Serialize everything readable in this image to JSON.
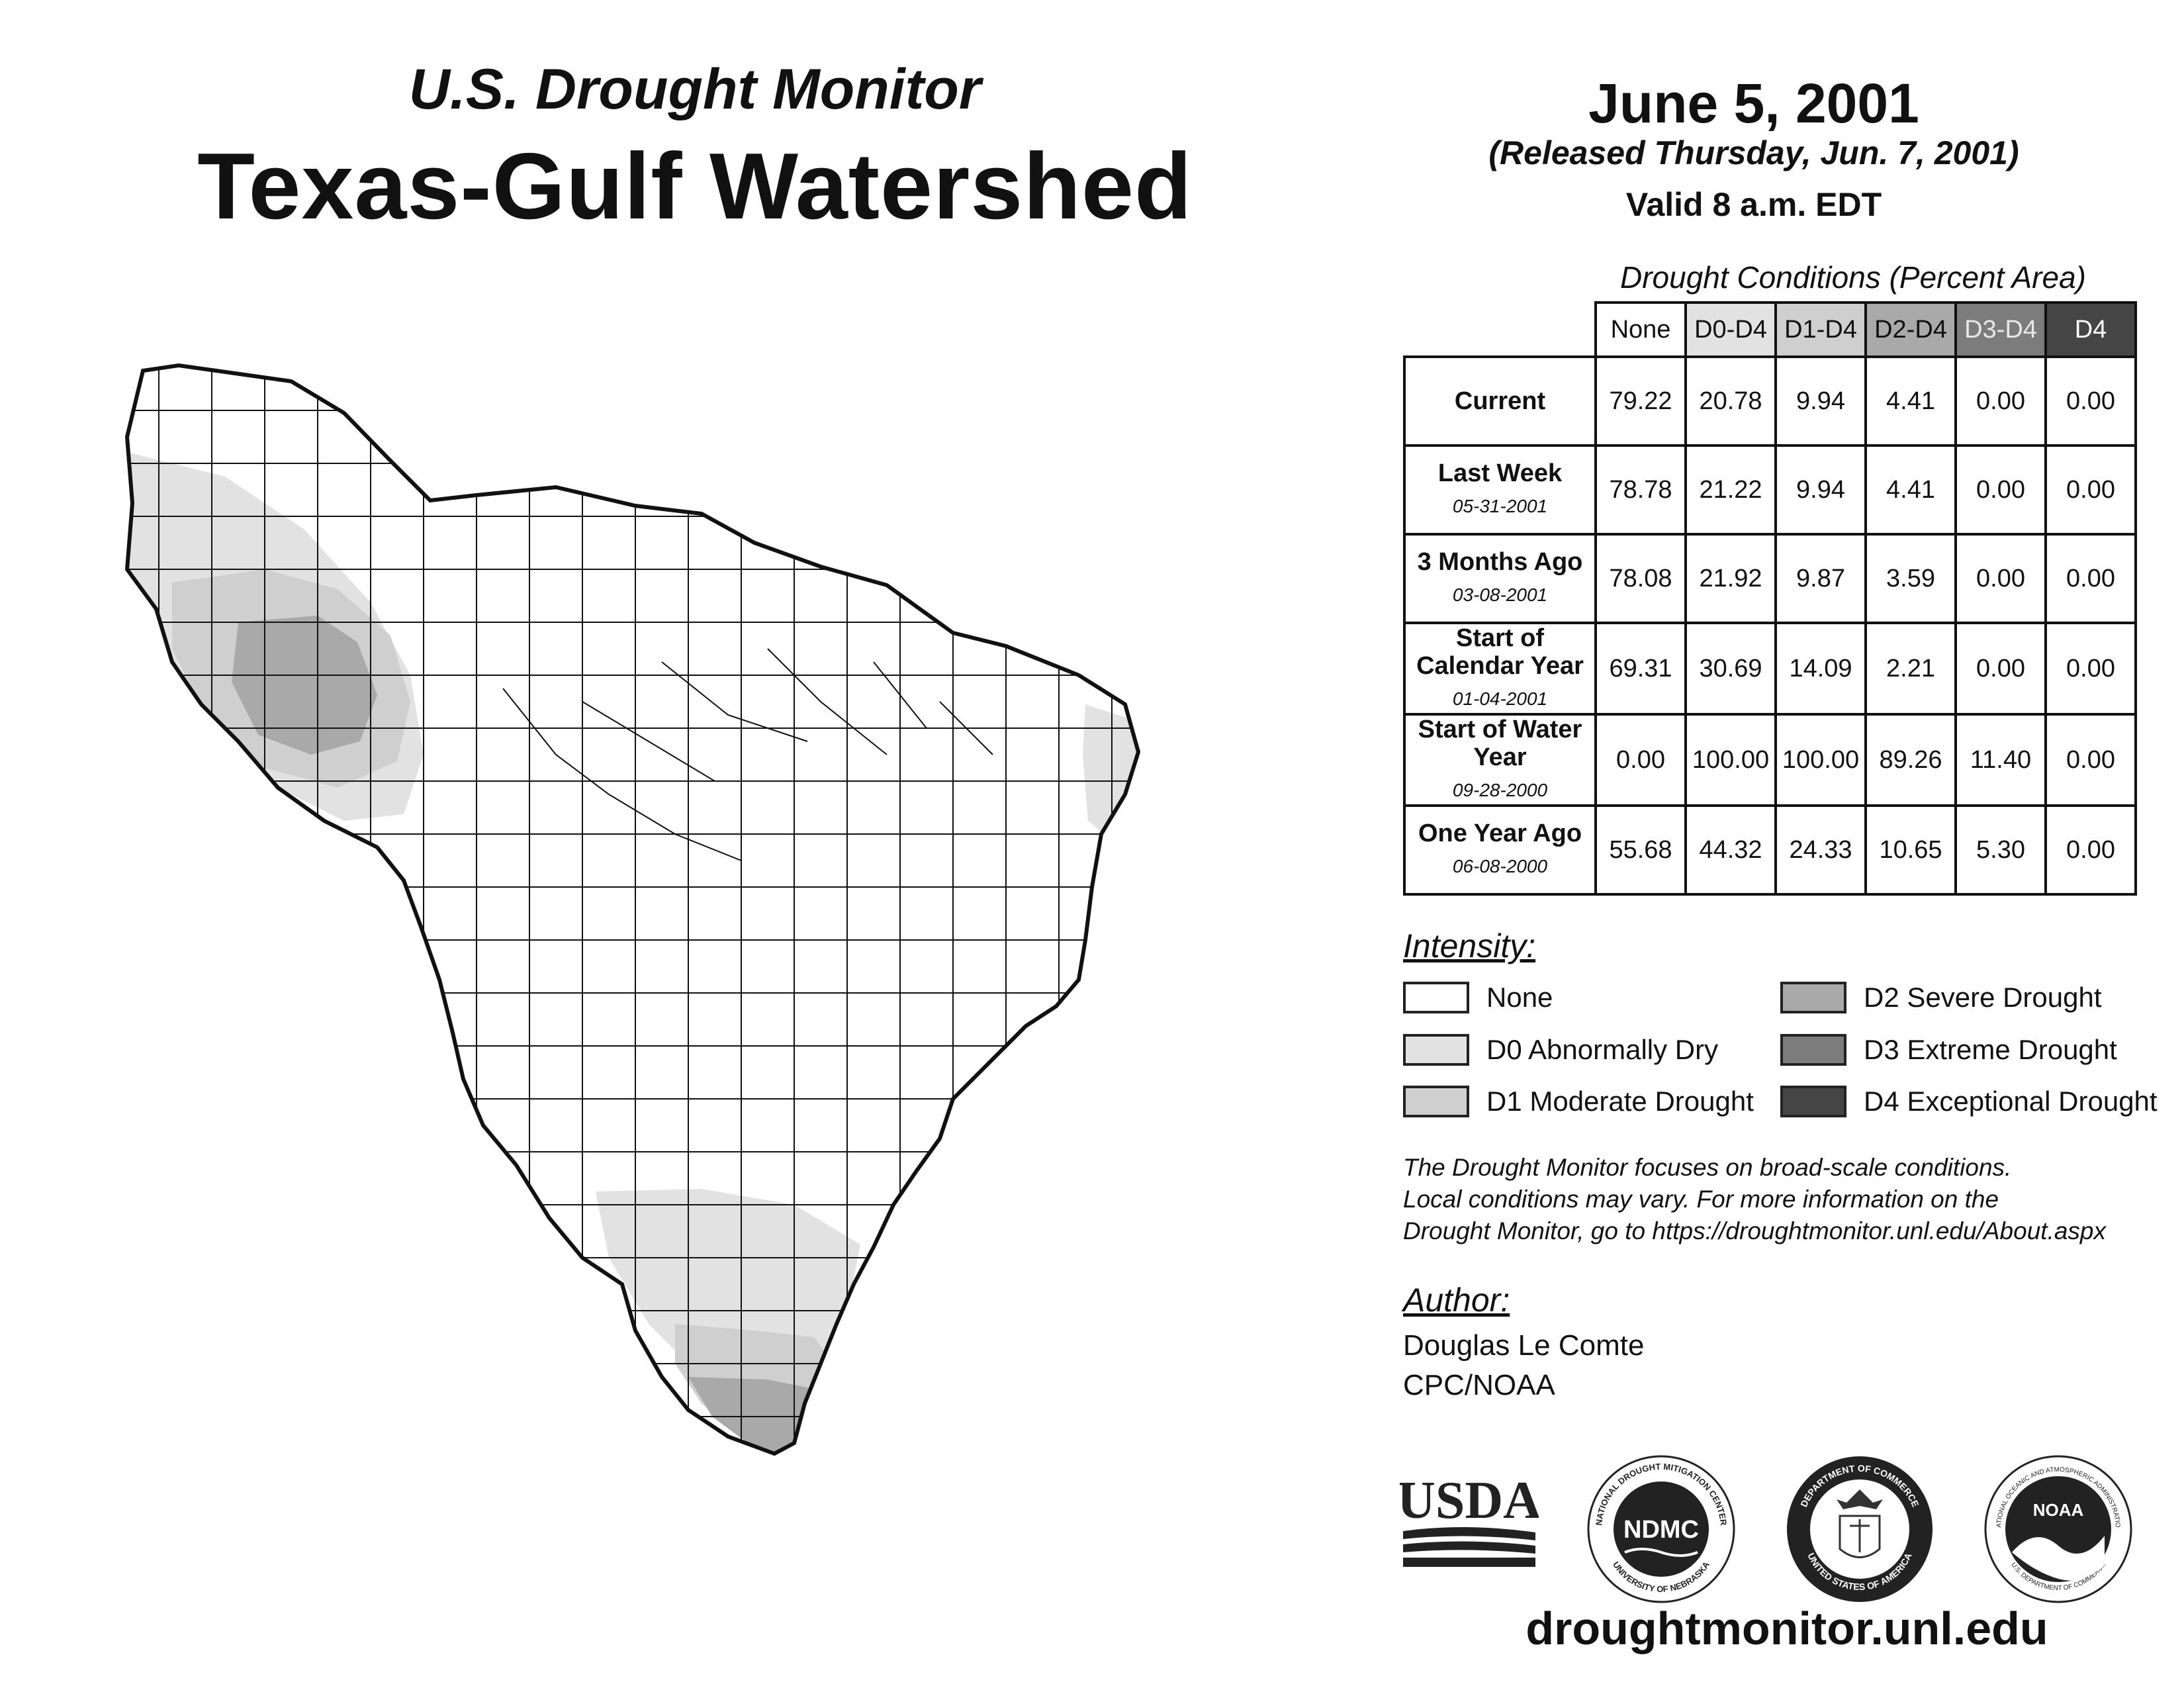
{
  "header": {
    "subtitle": "U.S. Drought Monitor",
    "title": "Texas-Gulf Watershed",
    "date": "June 5, 2001",
    "released": "(Released Thursday, Jun. 7, 2001)",
    "valid": "Valid 8 a.m. EDT"
  },
  "table": {
    "title": "Drought Conditions (Percent Area)",
    "columns": [
      "None",
      "D0-D4",
      "D1-D4",
      "D2-D4",
      "D3-D4",
      "D4"
    ],
    "rows": [
      {
        "label": "Current",
        "date": "",
        "values": [
          "79.22",
          "20.78",
          "9.94",
          "4.41",
          "0.00",
          "0.00"
        ]
      },
      {
        "label": "Last Week",
        "date": "05-31-2001",
        "values": [
          "78.78",
          "21.22",
          "9.94",
          "4.41",
          "0.00",
          "0.00"
        ]
      },
      {
        "label": "3 Months Ago",
        "date": "03-08-2001",
        "values": [
          "78.08",
          "21.92",
          "9.87",
          "3.59",
          "0.00",
          "0.00"
        ]
      },
      {
        "label": "Start of Calendar Year",
        "date": "01-04-2001",
        "values": [
          "69.31",
          "30.69",
          "14.09",
          "2.21",
          "0.00",
          "0.00"
        ]
      },
      {
        "label": "Start of Water Year",
        "date": "09-28-2000",
        "values": [
          "0.00",
          "100.00",
          "100.00",
          "89.26",
          "11.40",
          "0.00"
        ]
      },
      {
        "label": "One Year Ago",
        "date": "06-08-2000",
        "values": [
          "55.68",
          "44.32",
          "24.33",
          "10.65",
          "5.30",
          "0.00"
        ]
      }
    ]
  },
  "legend": {
    "title": "Intensity:",
    "items": [
      {
        "label": "None",
        "color": "#ffffff"
      },
      {
        "label": "D0 Abnormally Dry",
        "color": "#e2e2e2"
      },
      {
        "label": "D1 Moderate Drought",
        "color": "#cfcfcf"
      },
      {
        "label": "D2 Severe Drought",
        "color": "#a9a9a9"
      },
      {
        "label": "D3 Extreme Drought",
        "color": "#7c7c7c"
      },
      {
        "label": "D4 Exceptional Drought",
        "color": "#454545"
      }
    ]
  },
  "note": {
    "line1": "The Drought Monitor focuses on broad-scale conditions.",
    "line2": "Local conditions may vary. For more information on the",
    "line3": "Drought Monitor, go to https://droughtmonitor.unl.edu/About.aspx"
  },
  "author": {
    "title": "Author:",
    "name": "Douglas Le Comte",
    "org": "CPC/NOAA"
  },
  "logos": {
    "usda": "USDA",
    "ndmc": "NDMC",
    "ndmc_ring_top": "NATIONAL DROUGHT MITIGATION CENTER",
    "ndmc_ring_bottom": "UNIVERSITY OF NEBRASKA",
    "doc_ring_top": "DEPARTMENT OF COMMERCE",
    "doc_ring_bottom": "UNITED STATES OF AMERICA",
    "noaa": "NOAA",
    "noaa_ring_top": "NATIONAL OCEANIC AND ATMOSPHERIC ADMINISTRATION",
    "noaa_ring_bottom": "U.S. DEPARTMENT OF COMMERCE"
  },
  "website": "droughtmonitor.unl.edu"
}
